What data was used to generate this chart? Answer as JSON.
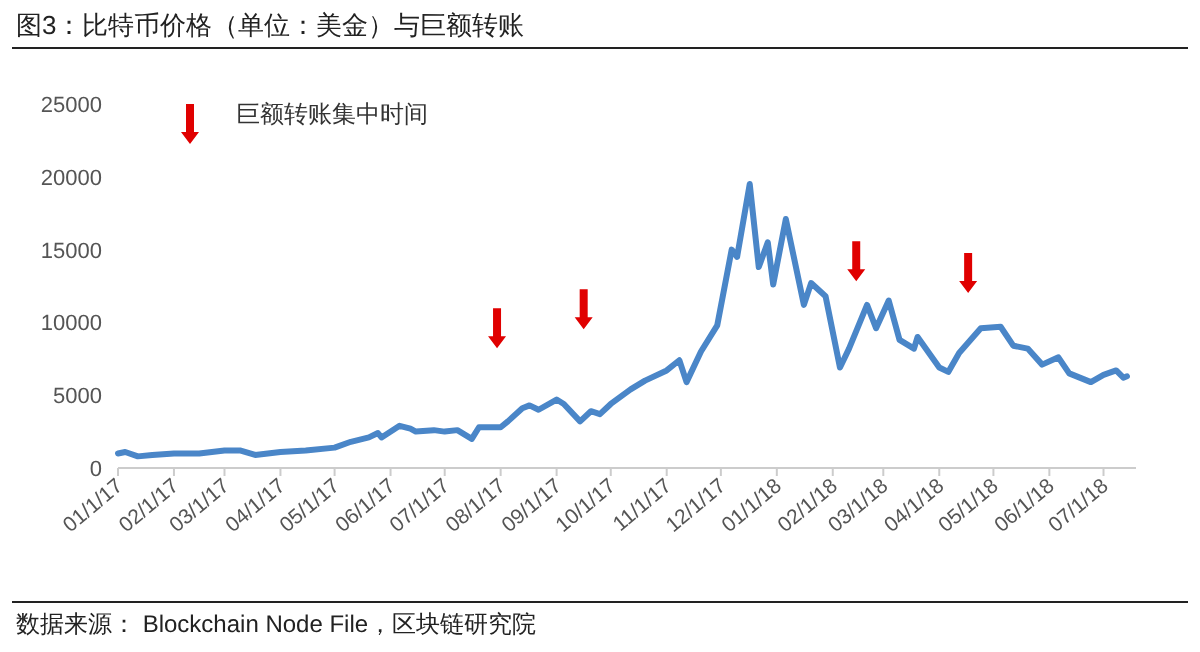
{
  "chart_data": {
    "type": "line",
    "title": "图3：比特币价格（单位：美金）与巨额转账",
    "xlim": [
      "2017-01-01",
      "2018-07-19"
    ],
    "ylim": [
      0,
      25000
    ],
    "yticks": [
      0,
      5000,
      10000,
      15000,
      20000,
      25000
    ],
    "xticks": [
      {
        "value": "2017-01-01",
        "label": "01/1/17"
      },
      {
        "value": "2017-02-01",
        "label": "02/1/17"
      },
      {
        "value": "2017-03-01",
        "label": "03/1/17"
      },
      {
        "value": "2017-04-01",
        "label": "04/1/17"
      },
      {
        "value": "2017-05-01",
        "label": "05/1/17"
      },
      {
        "value": "2017-06-01",
        "label": "06/1/17"
      },
      {
        "value": "2017-07-01",
        "label": "07/1/17"
      },
      {
        "value": "2017-08-01",
        "label": "08/1/17"
      },
      {
        "value": "2017-09-01",
        "label": "09/1/17"
      },
      {
        "value": "2017-10-01",
        "label": "10/1/17"
      },
      {
        "value": "2017-11-01",
        "label": "11/1/17"
      },
      {
        "value": "2017-12-01",
        "label": "12/1/17"
      },
      {
        "value": "2018-01-01",
        "label": "01/1/18"
      },
      {
        "value": "2018-02-01",
        "label": "02/1/18"
      },
      {
        "value": "2018-03-01",
        "label": "03/1/18"
      },
      {
        "value": "2018-04-01",
        "label": "04/1/18"
      },
      {
        "value": "2018-05-01",
        "label": "05/1/18"
      },
      {
        "value": "2018-06-01",
        "label": "06/1/18"
      },
      {
        "value": "2018-07-01",
        "label": "07/1/18"
      }
    ],
    "grid": false,
    "legend": "top left",
    "line_style": "solid",
    "marker": "none",
    "series": [
      {
        "color": "#4a86c8",
        "x": [
          "2017-01-01",
          "2017-01-05",
          "2017-01-12",
          "2017-01-20",
          "2017-02-01",
          "2017-02-15",
          "2017-03-01",
          "2017-03-10",
          "2017-03-18",
          "2017-03-25",
          "2017-04-01",
          "2017-04-15",
          "2017-05-01",
          "2017-05-10",
          "2017-05-20",
          "2017-05-25",
          "2017-05-27",
          "2017-06-06",
          "2017-06-12",
          "2017-06-15",
          "2017-06-25",
          "2017-07-01",
          "2017-07-08",
          "2017-07-16",
          "2017-07-20",
          "2017-08-01",
          "2017-08-05",
          "2017-08-13",
          "2017-08-17",
          "2017-08-22",
          "2017-09-01",
          "2017-09-05",
          "2017-09-14",
          "2017-09-20",
          "2017-09-25",
          "2017-10-01",
          "2017-10-12",
          "2017-10-20",
          "2017-11-01",
          "2017-11-08",
          "2017-11-12",
          "2017-11-20",
          "2017-11-29",
          "2017-12-07",
          "2017-12-10",
          "2017-12-17",
          "2017-12-22",
          "2017-12-27",
          "2017-12-30",
          "2018-01-06",
          "2018-01-16",
          "2018-01-20",
          "2018-01-28",
          "2018-02-05",
          "2018-02-10",
          "2018-02-20",
          "2018-02-25",
          "2018-03-04",
          "2018-03-10",
          "2018-03-18",
          "2018-03-20",
          "2018-04-01",
          "2018-04-06",
          "2018-04-12",
          "2018-04-24",
          "2018-05-05",
          "2018-05-12",
          "2018-05-20",
          "2018-05-28",
          "2018-06-06",
          "2018-06-12",
          "2018-06-24",
          "2018-07-01",
          "2018-07-08",
          "2018-07-12",
          "2018-07-14"
        ],
        "values": [
          1000,
          1100,
          800,
          900,
          1000,
          1000,
          1200,
          1200,
          900,
          1000,
          1100,
          1200,
          1400,
          1800,
          2100,
          2400,
          2100,
          2900,
          2700,
          2500,
          2600,
          2500,
          2600,
          2000,
          2800,
          2800,
          3200,
          4100,
          4300,
          4000,
          4700,
          4400,
          3200,
          3900,
          3700,
          4400,
          5400,
          6000,
          6700,
          7400,
          5900,
          8000,
          9800,
          15000,
          14500,
          19500,
          13800,
          15500,
          12600,
          17100,
          11200,
          12700,
          11800,
          6900,
          8200,
          11200,
          9600,
          11500,
          8800,
          8200,
          9000,
          6900,
          6600,
          7900,
          9600,
          9700,
          8400,
          8200,
          7100,
          7600,
          6500,
          5900,
          6400,
          6700,
          6200,
          6300
        ]
      },
      {
        "type": "scatter",
        "name": "巨额转账集中时间",
        "color": "#e00000",
        "x": [
          "2017-07-30",
          "2017-09-16",
          "2018-02-14",
          "2018-04-17"
        ],
        "values": [
          9600,
          10900,
          14200,
          13400
        ]
      }
    ],
    "annotations": [
      "数据来源： Blockchain Node File，区块链研究院"
    ]
  }
}
